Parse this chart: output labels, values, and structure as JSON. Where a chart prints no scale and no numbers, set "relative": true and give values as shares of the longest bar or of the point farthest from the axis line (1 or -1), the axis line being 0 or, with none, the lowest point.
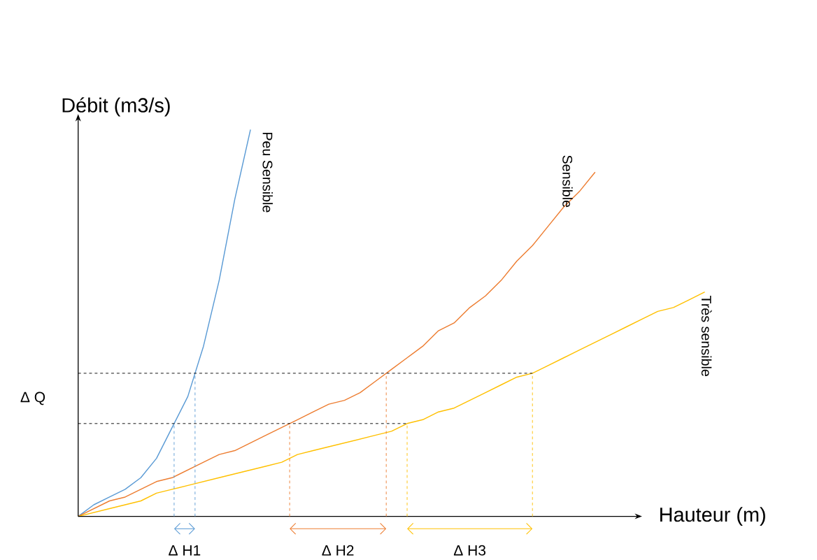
{
  "chart_data": {
    "type": "line",
    "relative": true,
    "xlabel": "Hauteur (m)",
    "ylabel": "Débit (m3/s)",
    "categories": [
      null,
      null,
      null,
      null,
      null,
      null,
      null,
      null,
      null,
      null,
      null,
      null,
      null,
      null,
      null,
      null,
      null,
      null,
      null,
      null,
      null,
      null,
      null,
      null,
      null,
      null,
      null,
      null,
      null,
      null,
      null,
      null,
      null,
      null,
      null,
      null,
      null,
      null,
      null,
      null,
      null
    ],
    "series": [
      {
        "name": "Peu Sensible",
        "color": "#5b9bd5",
        "values": [
          0,
          0.03,
          0.05,
          0.07,
          0.1,
          0.15,
          0.23,
          0.31,
          0.44,
          0.61,
          0.82,
          1,
          null,
          null,
          null,
          null,
          null,
          null,
          null,
          null,
          null,
          null,
          null,
          null,
          null,
          null,
          null,
          null,
          null,
          null,
          null,
          null,
          null,
          null,
          null,
          null,
          null,
          null,
          null,
          null,
          null
        ]
      },
      {
        "name": "Sensible",
        "color": "#ed7d31",
        "values": [
          0,
          0.02,
          0.04,
          0.05,
          0.07,
          0.09,
          0.1,
          0.12,
          0.14,
          0.16,
          0.17,
          0.19,
          0.21,
          0.23,
          0.25,
          0.27,
          0.29,
          0.3,
          0.32,
          0.35,
          0.38,
          0.41,
          0.44,
          0.48,
          0.5,
          0.54,
          0.57,
          0.61,
          0.66,
          0.7,
          0.75,
          0.8,
          0.84,
          0.89,
          null,
          null,
          null,
          null,
          null,
          null,
          null
        ]
      },
      {
        "name": "Très sensible",
        "color": "#ffc000",
        "values": [
          0,
          0.01,
          0.02,
          0.03,
          0.04,
          0.06,
          0.07,
          0.08,
          0.09,
          0.1,
          0.11,
          0.12,
          0.13,
          0.14,
          0.16,
          0.17,
          0.18,
          0.19,
          0.2,
          0.21,
          0.22,
          0.24,
          0.25,
          0.27,
          0.28,
          0.3,
          0.32,
          0.34,
          0.36,
          0.37,
          0.39,
          0.41,
          0.43,
          0.45,
          0.47,
          0.49,
          0.51,
          0.53,
          0.54,
          0.56,
          0.58
        ]
      }
    ],
    "ref_lines": [
      {
        "axis": "y",
        "value": 0.24,
        "color": "#000000",
        "line_style": "dashed"
      },
      {
        "axis": "y",
        "value": 0.37,
        "color": "#000000",
        "line_style": "dashed"
      }
    ],
    "annotations": [
      "Δ Q",
      "Δ H1",
      "Δ H2",
      "Δ H3"
    ],
    "marker": "none",
    "line_style": "solid"
  }
}
